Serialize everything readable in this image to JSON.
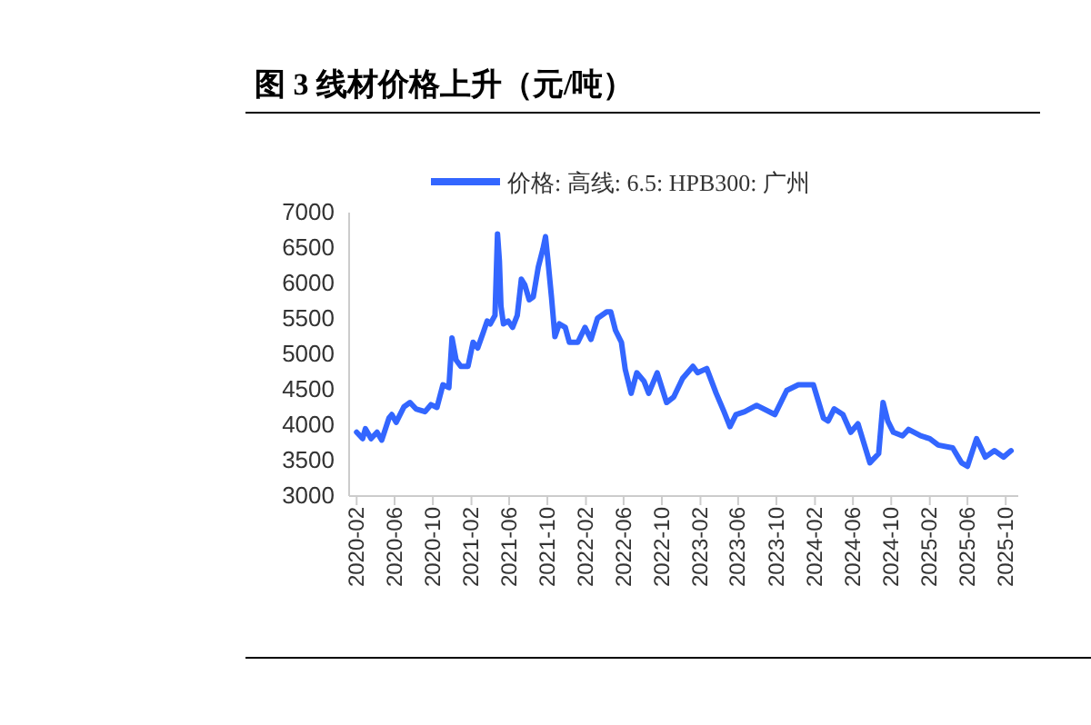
{
  "chart_data": {
    "type": "line",
    "title": "图 3  线材价格上升（元/吨）",
    "x": [
      "2020-02-01",
      "2020-02-20",
      "2020-02-29",
      "2020-03-18",
      "2020-04-06",
      "2020-04-21",
      "2020-05-14",
      "2020-05-23",
      "2020-06-06",
      "2020-07-01",
      "2020-07-20",
      "2020-08-08",
      "2020-09-06",
      "2020-09-25",
      "2020-10-14",
      "2020-11-02",
      "2020-11-21",
      "2020-12-01",
      "2020-12-14",
      "2020-12-29",
      "2021-01-21",
      "2021-02-06",
      "2021-02-21",
      "2021-03-10",
      "2021-03-23",
      "2021-04-02",
      "2021-04-17",
      "2021-04-25",
      "2021-05-01",
      "2021-05-06",
      "2021-05-14",
      "2021-05-29",
      "2021-06-12",
      "2021-06-27",
      "2021-07-10",
      "2021-07-21",
      "2021-08-04",
      "2021-08-17",
      "2021-09-02",
      "2021-09-17",
      "2021-09-25",
      "2021-10-02",
      "2021-10-14",
      "2021-10-25",
      "2021-11-08",
      "2021-11-27",
      "2021-12-10",
      "2022-01-06",
      "2022-01-29",
      "2022-02-17",
      "2022-03-10",
      "2022-04-08",
      "2022-04-21",
      "2022-05-06",
      "2022-05-25",
      "2022-06-06",
      "2022-06-25",
      "2022-07-13",
      "2022-08-05",
      "2022-08-20",
      "2022-09-16",
      "2022-10-16",
      "2022-11-08",
      "2022-12-06",
      "2023-01-08",
      "2023-01-23",
      "2023-02-21",
      "2023-03-23",
      "2023-04-17",
      "2023-05-06",
      "2023-05-25",
      "2023-06-22",
      "2023-07-30",
      "2023-09-26",
      "2023-11-03",
      "2023-12-10",
      "2024-01-27",
      "2024-02-28",
      "2024-03-14",
      "2024-04-02",
      "2024-04-30",
      "2024-05-25",
      "2024-06-17",
      "2024-07-25",
      "2024-08-22",
      "2024-09-05",
      "2024-09-20",
      "2024-10-08",
      "2024-11-06",
      "2024-11-25",
      "2025-01-03",
      "2025-02-01",
      "2025-02-28",
      "2025-04-15",
      "2025-05-13",
      "2025-06-01",
      "2025-06-30",
      "2025-07-28",
      "2025-08-26",
      "2025-09-24",
      "2025-10-18"
    ],
    "series": [
      {
        "name": "价格: 高线: 6.5: HPB300: 广州",
        "color": "#3366ff",
        "values": [
          3900,
          3810,
          3950,
          3810,
          3900,
          3790,
          4100,
          4150,
          4040,
          4260,
          4320,
          4230,
          4190,
          4290,
          4250,
          4570,
          4530,
          5230,
          4920,
          4830,
          4830,
          5170,
          5090,
          5300,
          5470,
          5430,
          5550,
          6700,
          6320,
          5680,
          5430,
          5470,
          5380,
          5550,
          6060,
          5980,
          5770,
          5810,
          6230,
          6490,
          6660,
          6360,
          5810,
          5250,
          5430,
          5380,
          5170,
          5170,
          5380,
          5210,
          5510,
          5600,
          5600,
          5340,
          5170,
          4790,
          4450,
          4740,
          4620,
          4450,
          4740,
          4320,
          4400,
          4660,
          4830,
          4740,
          4800,
          4450,
          4190,
          3980,
          4150,
          4190,
          4280,
          4150,
          4490,
          4570,
          4570,
          4100,
          4060,
          4230,
          4150,
          3900,
          4020,
          3470,
          3600,
          4320,
          4060,
          3900,
          3850,
          3940,
          3850,
          3810,
          3720,
          3680,
          3470,
          3420,
          3810,
          3550,
          3640,
          3550,
          3640
        ]
      }
    ],
    "xlim": [
      "2020-01-08",
      "2025-11-10"
    ],
    "xticks": [
      {
        "value": "2020-02-01",
        "label": "2020-02"
      },
      {
        "value": "2020-06-01",
        "label": "2020-06"
      },
      {
        "value": "2020-10-01",
        "label": "2020-10"
      },
      {
        "value": "2021-02-01",
        "label": "2021-02"
      },
      {
        "value": "2021-06-01",
        "label": "2021-06"
      },
      {
        "value": "2021-10-01",
        "label": "2021-10"
      },
      {
        "value": "2022-02-01",
        "label": "2022-02"
      },
      {
        "value": "2022-06-01",
        "label": "2022-06"
      },
      {
        "value": "2022-10-01",
        "label": "2022-10"
      },
      {
        "value": "2023-02-01",
        "label": "2023-02"
      },
      {
        "value": "2023-06-01",
        "label": "2023-06"
      },
      {
        "value": "2023-10-01",
        "label": "2023-10"
      },
      {
        "value": "2024-02-01",
        "label": "2024-02"
      },
      {
        "value": "2024-06-01",
        "label": "2024-06"
      },
      {
        "value": "2024-10-01",
        "label": "2024-10"
      },
      {
        "value": "2025-02-01",
        "label": "2025-02"
      },
      {
        "value": "2025-06-01",
        "label": "2025-06"
      },
      {
        "value": "2025-10-01",
        "label": "2025-10"
      }
    ],
    "ylim": [
      3000,
      7000
    ],
    "yticks": [
      3000,
      3500,
      4000,
      4500,
      5000,
      5500,
      6000,
      6500,
      7000
    ],
    "grid": false,
    "legend": "top",
    "marker": "none",
    "line_style": "solid"
  }
}
